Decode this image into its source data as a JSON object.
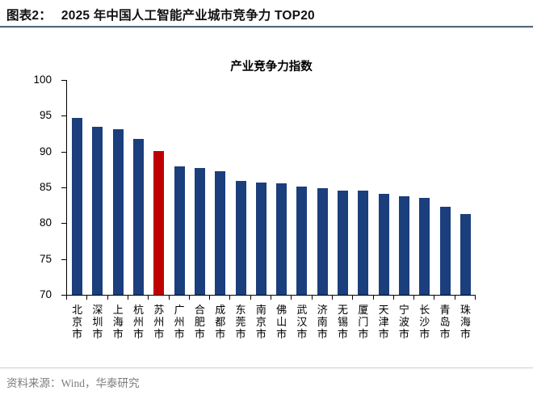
{
  "header": {
    "label": "图表2：",
    "title": "2025 年中国人工智能产业城市竞争力 TOP20"
  },
  "chart_data": {
    "type": "bar",
    "title": "产业竞争力指数",
    "categories": [
      "北京市",
      "深圳市",
      "上海市",
      "杭州市",
      "苏州市",
      "广州市",
      "合肥市",
      "成都市",
      "东莞市",
      "南京市",
      "佛山市",
      "武汉市",
      "济南市",
      "无锡市",
      "厦门市",
      "天津市",
      "宁波市",
      "长沙市",
      "青岛市",
      "珠海市"
    ],
    "values": [
      94.7,
      93.5,
      93.1,
      91.8,
      90.1,
      87.9,
      87.7,
      87.3,
      85.9,
      85.7,
      85.6,
      85.1,
      84.9,
      84.6,
      84.5,
      84.1,
      83.8,
      83.5,
      82.3,
      81.3
    ],
    "highlight_category": "苏州市",
    "highlight_index": 4,
    "bar_color": "#1b3e7d",
    "highlight_color": "#c00000",
    "xlabel": "",
    "ylabel": "",
    "ylim": [
      70,
      100
    ],
    "yticks": [
      100,
      95,
      90,
      85,
      80,
      75,
      70
    ],
    "grid": "off",
    "legend": "none"
  },
  "footer": {
    "source": "资料来源：Wind，华泰研究"
  }
}
